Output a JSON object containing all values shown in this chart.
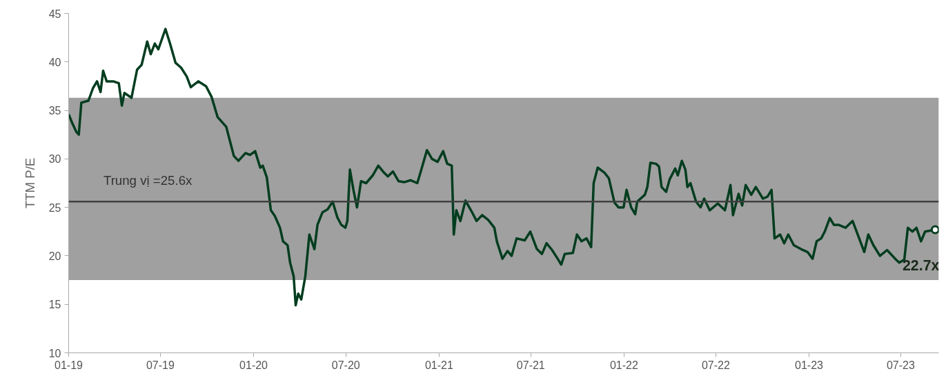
{
  "chart_data": {
    "type": "line",
    "ylabel": "TTM P/E",
    "xlim": [
      "2019-01-01",
      "2023-09-14"
    ],
    "ylim": [
      10,
      45
    ],
    "yticks": [
      10,
      15,
      20,
      25,
      30,
      35,
      40,
      45
    ],
    "xticks": [
      {
        "value": "2019-01-01",
        "label": "01-19"
      },
      {
        "value": "2019-07-01",
        "label": "07-19"
      },
      {
        "value": "2020-01-01",
        "label": "01-20"
      },
      {
        "value": "2020-07-01",
        "label": "07-20"
      },
      {
        "value": "2021-01-01",
        "label": "01-21"
      },
      {
        "value": "2021-07-01",
        "label": "07-21"
      },
      {
        "value": "2022-01-01",
        "label": "01-22"
      },
      {
        "value": "2022-07-01",
        "label": "07-22"
      },
      {
        "value": "2023-01-01",
        "label": "01-23"
      },
      {
        "value": "2023-07-01",
        "label": "07-23"
      }
    ],
    "grid": false,
    "marker": "none",
    "line_style": "solid",
    "x": [
      "2019-01-01",
      "2019-01-08",
      "2019-01-16",
      "2019-01-21",
      "2019-01-26",
      "2019-02-09",
      "2019-02-18",
      "2019-02-26",
      "2019-03-05",
      "2019-03-10",
      "2019-03-17",
      "2019-03-30",
      "2019-04-10",
      "2019-04-16",
      "2019-04-21",
      "2019-05-05",
      "2019-05-16",
      "2019-05-25",
      "2019-06-05",
      "2019-06-12",
      "2019-06-20",
      "2019-06-27",
      "2019-07-11",
      "2019-07-20",
      "2019-07-31",
      "2019-08-11",
      "2019-08-22",
      "2019-08-30",
      "2019-09-14",
      "2019-09-29",
      "2019-10-10",
      "2019-10-22",
      "2019-10-29",
      "2019-11-08",
      "2019-11-23",
      "2019-12-02",
      "2019-12-16",
      "2019-12-25",
      "2020-01-04",
      "2020-01-14",
      "2020-01-19",
      "2020-01-27",
      "2020-02-04",
      "2020-02-12",
      "2020-02-22",
      "2020-02-28",
      "2020-03-08",
      "2020-03-13",
      "2020-03-20",
      "2020-03-24",
      "2020-03-29",
      "2020-04-04",
      "2020-04-12",
      "2020-04-20",
      "2020-04-30",
      "2020-05-06",
      "2020-05-16",
      "2020-05-26",
      "2020-06-05",
      "2020-06-14",
      "2020-06-22",
      "2020-06-30",
      "2020-07-04",
      "2020-07-09",
      "2020-07-16",
      "2020-07-23",
      "2020-07-31",
      "2020-08-10",
      "2020-08-23",
      "2020-09-03",
      "2020-09-14",
      "2020-09-22",
      "2020-10-02",
      "2020-10-13",
      "2020-10-24",
      "2020-11-06",
      "2020-11-19",
      "2020-11-27",
      "2020-12-08",
      "2020-12-18",
      "2020-12-29",
      "2021-01-09",
      "2021-01-17",
      "2021-01-26",
      "2021-01-30",
      "2021-02-04",
      "2021-02-12",
      "2021-02-22",
      "2021-03-06",
      "2021-03-16",
      "2021-03-27",
      "2021-04-08",
      "2021-04-20",
      "2021-04-25",
      "2021-05-06",
      "2021-05-16",
      "2021-05-24",
      "2021-06-03",
      "2021-06-19",
      "2021-06-30",
      "2021-07-13",
      "2021-07-23",
      "2021-08-01",
      "2021-08-12",
      "2021-08-23",
      "2021-08-30",
      "2021-09-06",
      "2021-09-22",
      "2021-09-30",
      "2021-10-09",
      "2021-10-19",
      "2021-10-28",
      "2021-11-02",
      "2021-11-10",
      "2021-11-23",
      "2021-12-02",
      "2021-12-13",
      "2021-12-21",
      "2021-12-31",
      "2022-01-06",
      "2022-01-15",
      "2022-01-23",
      "2022-01-27",
      "2022-02-11",
      "2022-02-16",
      "2022-02-22",
      "2022-03-05",
      "2022-03-11",
      "2022-03-16",
      "2022-03-25",
      "2022-04-01",
      "2022-04-12",
      "2022-04-17",
      "2022-04-25",
      "2022-05-02",
      "2022-05-06",
      "2022-05-12",
      "2022-05-23",
      "2022-06-01",
      "2022-06-08",
      "2022-06-19",
      "2022-07-05",
      "2022-07-19",
      "2022-07-30",
      "2022-08-04",
      "2022-08-15",
      "2022-08-22",
      "2022-08-29",
      "2022-09-09",
      "2022-09-18",
      "2022-10-02",
      "2022-10-11",
      "2022-10-19",
      "2022-10-25",
      "2022-11-05",
      "2022-11-13",
      "2022-11-21",
      "2022-12-02",
      "2022-12-16",
      "2022-12-29",
      "2023-01-08",
      "2023-01-16",
      "2023-01-25",
      "2023-02-01",
      "2023-02-11",
      "2023-02-19",
      "2023-02-28",
      "2023-03-14",
      "2023-03-28",
      "2023-04-10",
      "2023-04-20",
      "2023-04-28",
      "2023-05-08",
      "2023-05-21",
      "2023-06-04",
      "2023-06-20",
      "2023-06-28",
      "2023-07-08",
      "2023-07-15",
      "2023-07-24",
      "2023-08-01",
      "2023-08-10",
      "2023-08-18",
      "2023-09-07"
    ],
    "series": [
      {
        "color": "#033d1f",
        "values": [
          34.6,
          33.7,
          32.8,
          32.5,
          35.8,
          36.0,
          37.3,
          38.0,
          36.9,
          39.1,
          38.0,
          38.0,
          37.8,
          35.5,
          36.8,
          36.3,
          39.2,
          39.7,
          42.1,
          40.8,
          41.9,
          41.3,
          43.4,
          41.9,
          39.9,
          39.4,
          38.5,
          37.4,
          38.0,
          37.5,
          36.4,
          34.3,
          33.9,
          33.3,
          30.3,
          29.8,
          30.6,
          30.4,
          30.8,
          29.1,
          29.3,
          28.1,
          24.7,
          24.1,
          22.9,
          21.5,
          21.1,
          19.3,
          17.9,
          14.9,
          16.1,
          15.5,
          17.9,
          22.2,
          20.7,
          23.2,
          24.5,
          24.8,
          25.6,
          24.0,
          23.2,
          22.9,
          23.6,
          28.9,
          26.8,
          25.0,
          27.7,
          27.5,
          28.3,
          29.3,
          28.6,
          28.2,
          28.7,
          27.7,
          27.6,
          27.8,
          27.5,
          28.9,
          30.9,
          30.0,
          29.7,
          30.8,
          29.5,
          29.3,
          22.2,
          24.7,
          23.6,
          25.7,
          24.6,
          23.6,
          24.2,
          23.7,
          22.9,
          21.5,
          19.7,
          20.5,
          20.0,
          21.8,
          21.6,
          22.5,
          20.7,
          20.2,
          21.3,
          20.6,
          19.7,
          19.1,
          20.2,
          20.3,
          22.2,
          21.5,
          21.8,
          20.9,
          27.5,
          29.1,
          28.6,
          28.0,
          25.5,
          25.0,
          25.0,
          26.8,
          25.0,
          24.3,
          25.6,
          26.3,
          27.1,
          29.6,
          29.5,
          29.2,
          27.1,
          26.6,
          27.9,
          29.0,
          28.3,
          29.8,
          28.9,
          27.1,
          27.5,
          25.6,
          25.0,
          25.9,
          24.7,
          25.4,
          24.7,
          27.3,
          24.2,
          26.4,
          25.2,
          27.3,
          26.3,
          27.1,
          25.9,
          26.1,
          26.8,
          21.8,
          22.2,
          21.3,
          22.2,
          21.1,
          20.7,
          20.4,
          19.7,
          21.5,
          21.8,
          22.5,
          23.9,
          23.2,
          23.2,
          22.9,
          23.6,
          21.8,
          20.4,
          22.2,
          21.1,
          20.0,
          20.6,
          19.7,
          19.3,
          19.6,
          22.9,
          22.5,
          22.9,
          21.5,
          22.5,
          22.7
        ]
      }
    ],
    "bands": [
      {
        "axis": "y",
        "from": 17.5,
        "to": 36.3,
        "color": "#a0a0a0"
      }
    ],
    "ref_lines": [
      {
        "axis": "y",
        "value": 25.6,
        "label": "Trung vị =25.6x",
        "color": "#404040",
        "line_style": "solid"
      }
    ],
    "annotations": [
      {
        "text": "22.7x",
        "x": "2023-09-07",
        "y": 22.7
      }
    ]
  }
}
